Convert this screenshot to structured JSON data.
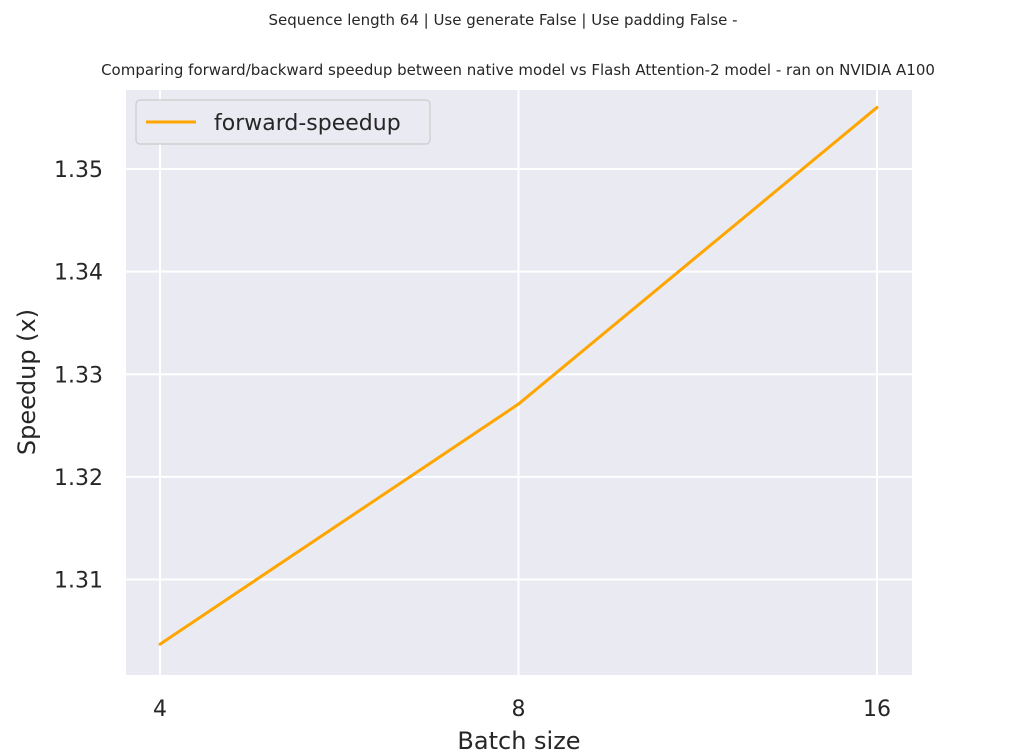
{
  "chart_data": {
    "type": "line",
    "title_line1": "Sequence length 64 | Use generate False | Use padding False -",
    "title_line2": "Comparing forward/backward speedup between native model vs Flash Attention-2 model - ran on NVIDIA A100",
    "xlabel": "Batch size",
    "ylabel": "Speedup (x)",
    "x_ticks": [
      "4",
      "8",
      "16"
    ],
    "y_ticks": [
      "1.31",
      "1.32",
      "1.33",
      "1.34",
      "1.35"
    ],
    "ylim": [
      1.3007,
      1.3577
    ],
    "grid": true,
    "legend_position": "top-left",
    "series": [
      {
        "name": "forward-speedup",
        "color": "#ffa500",
        "x": [
          4,
          8,
          16
        ],
        "y": [
          1.3037,
          1.3271,
          1.356
        ]
      }
    ]
  },
  "style": {
    "plot_background": "#eaeaf2",
    "grid_color": "#ffffff",
    "text_color": "#262626"
  }
}
